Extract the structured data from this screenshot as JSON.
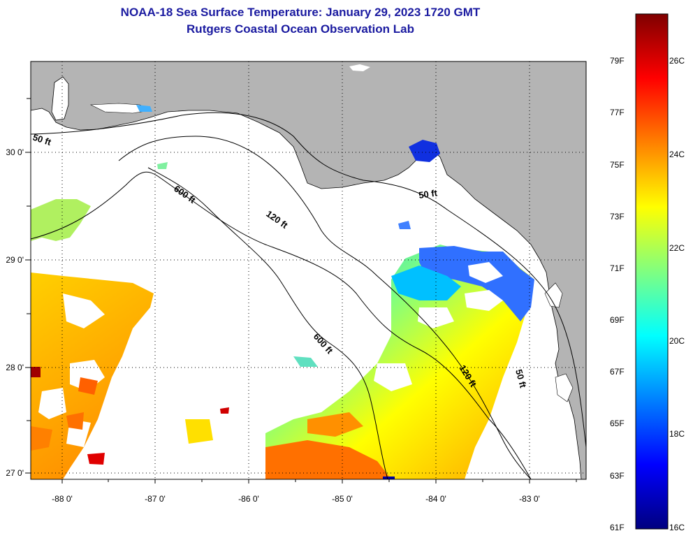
{
  "title": {
    "line1": "NOAA-18 Sea Surface Temperature:  January 29, 2023 1720 GMT",
    "line2": "Rutgers Coastal Ocean Observation Lab"
  },
  "map": {
    "lon_ticks": [
      "-88 0'",
      "-87 0'",
      "-86 0'",
      "-85 0'",
      "-84 0'",
      "-83 0'"
    ],
    "lat_ticks": [
      "30 0'",
      "29 0'",
      "28 0'",
      "27 0'"
    ],
    "contours": [
      "50 ft",
      "600 ft",
      "120 ft",
      "50 ft",
      "600 ft",
      "120 ft",
      "50 ft"
    ],
    "colors": {
      "land": "#b4b4b4",
      "water": "#ffffff",
      "cloud": "#ffffff"
    }
  },
  "colorbar": {
    "fahrenheit": [
      "79F",
      "77F",
      "75F",
      "73F",
      "71F",
      "69F",
      "67F",
      "65F",
      "63F",
      "61F"
    ],
    "celsius": [
      "26C",
      "24C",
      "22C",
      "20C",
      "18C",
      "16C"
    ],
    "colors": [
      "#00007f",
      "#0000ff",
      "#0080ff",
      "#00ffff",
      "#80ff80",
      "#ffff00",
      "#ff8000",
      "#ff0000",
      "#7f0000"
    ]
  }
}
